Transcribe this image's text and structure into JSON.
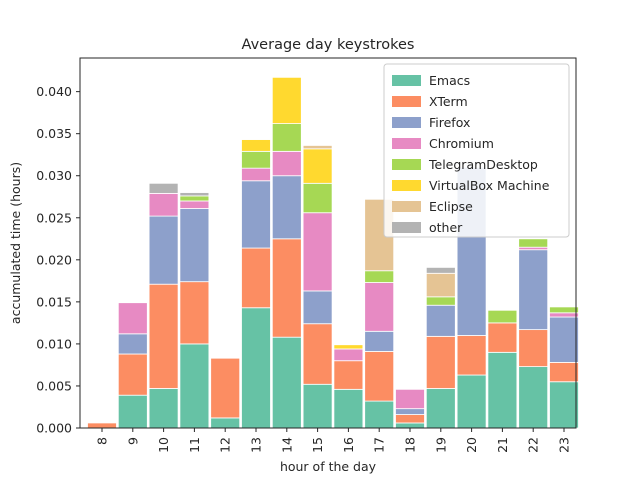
{
  "chart_data": {
    "type": "bar",
    "stacked": true,
    "title": "Average day keystrokes",
    "xlabel": "hour of the day",
    "ylabel": "accumulated time (hours)",
    "ylim": [
      0,
      0.044
    ],
    "yticks": [
      "0.000",
      "0.005",
      "0.010",
      "0.015",
      "0.020",
      "0.025",
      "0.030",
      "0.035",
      "0.040"
    ],
    "categories": [
      "8",
      "9",
      "10",
      "11",
      "12",
      "13",
      "14",
      "15",
      "16",
      "17",
      "18",
      "19",
      "20",
      "21",
      "22",
      "23"
    ],
    "grid": false,
    "legend_position": "top-right",
    "series": [
      {
        "name": "Emacs",
        "color": "#66c2a5",
        "values": [
          0.0,
          0.0039,
          0.0047,
          0.01,
          0.0012,
          0.0143,
          0.0108,
          0.0052,
          0.0046,
          0.0032,
          0.0006,
          0.0047,
          0.0063,
          0.009,
          0.0073,
          0.0055
        ]
      },
      {
        "name": "XTerm",
        "color": "#fc8d62",
        "values": [
          0.0006,
          0.0049,
          0.0124,
          0.0074,
          0.0071,
          0.0071,
          0.0117,
          0.0072,
          0.0034,
          0.0059,
          0.001,
          0.0062,
          0.0047,
          0.0035,
          0.0044,
          0.0023
        ]
      },
      {
        "name": "Firefox",
        "color": "#8da0cb",
        "values": [
          0.0,
          0.0024,
          0.0081,
          0.0087,
          0.0,
          0.008,
          0.0075,
          0.0039,
          0.0,
          0.0024,
          0.0007,
          0.0037,
          0.02,
          0.0,
          0.0095,
          0.0054
        ]
      },
      {
        "name": "Chromium",
        "color": "#e78ac3",
        "values": [
          0.0,
          0.0037,
          0.0027,
          0.0009,
          0.0,
          0.0015,
          0.0029,
          0.0093,
          0.0014,
          0.0058,
          0.0023,
          0.0,
          0.0,
          0.0,
          0.0003,
          0.0005
        ]
      },
      {
        "name": "TelegramDesktop",
        "color": "#a6d854",
        "values": [
          0.0,
          0.0,
          0.0,
          0.0006,
          0.0,
          0.002,
          0.0033,
          0.0035,
          0.0,
          0.0014,
          0.0,
          0.001,
          0.0,
          0.0015,
          0.001,
          0.0007
        ]
      },
      {
        "name": "VirtualBox Machine",
        "color": "#ffd92f",
        "values": [
          0.0,
          0.0,
          0.0,
          0.0,
          0.0,
          0.0014,
          0.0055,
          0.0041,
          0.0005,
          0.0,
          0.0,
          0.0,
          0.0,
          0.0,
          0.0,
          0.0
        ]
      },
      {
        "name": "Eclipse",
        "color": "#e5c494",
        "values": [
          0.0,
          0.0,
          0.0,
          0.0,
          0.0,
          0.0,
          0.0,
          0.0004,
          0.0,
          0.0085,
          0.0,
          0.0028,
          0.0,
          0.0,
          0.0,
          0.0
        ]
      },
      {
        "name": "other",
        "color": "#b3b3b3",
        "values": [
          0.0,
          0.0,
          0.0012,
          0.0004,
          0.0,
          0.0,
          0.0,
          0.0,
          0.0,
          0.0,
          0.0,
          0.0007,
          0.0,
          0.0,
          0.0,
          0.0
        ]
      }
    ]
  }
}
